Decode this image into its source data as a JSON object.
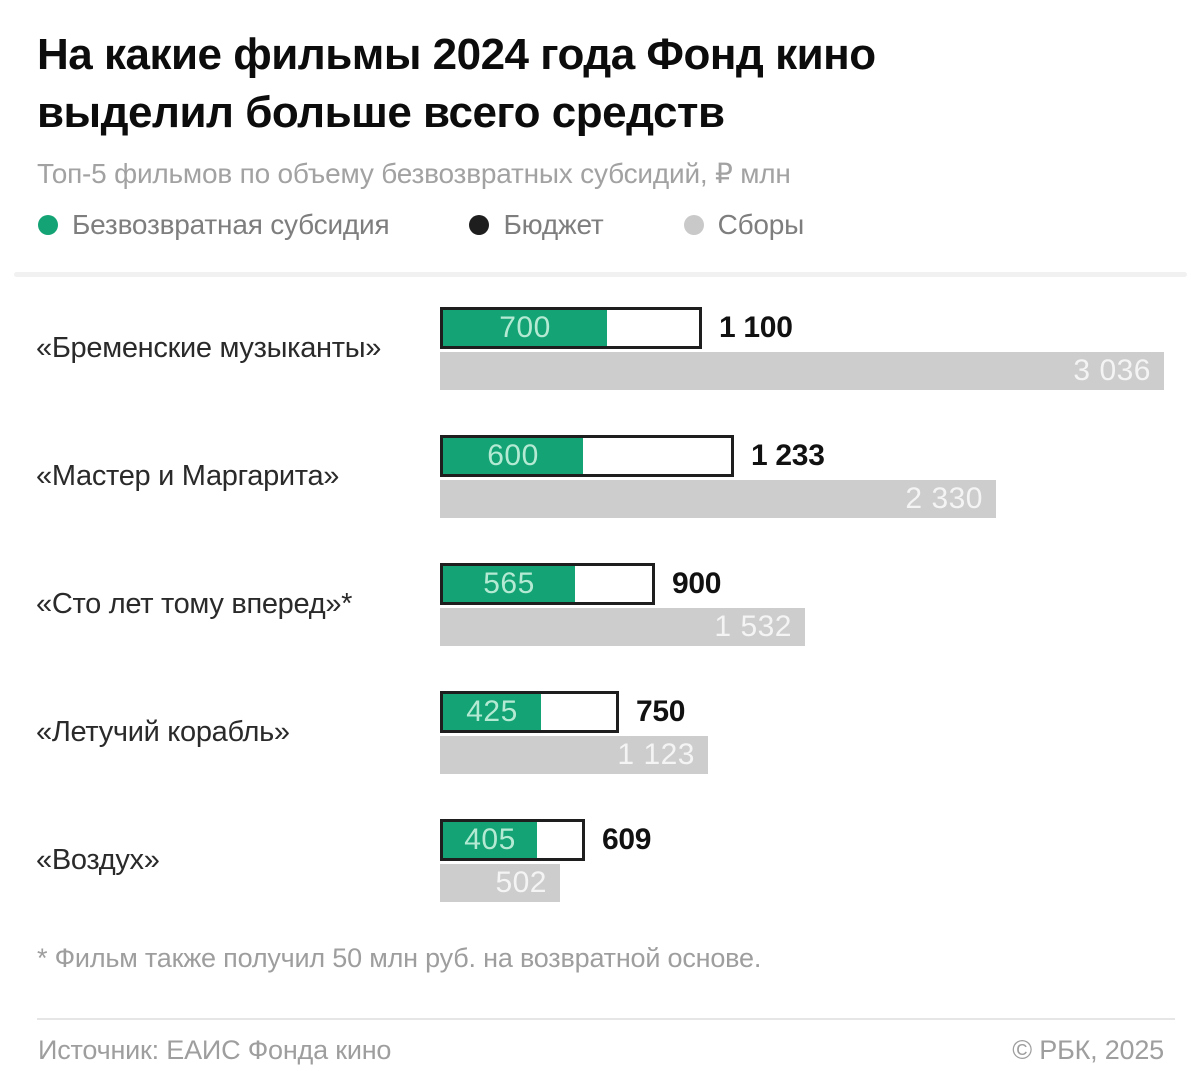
{
  "header": {
    "title_line1": "На какие фильмы 2024 года Фонд кино",
    "title_line2": "выделил больше всего средств",
    "subtitle": "Топ-5 фильмов по объему безвозвратных субсидий, ₽ млн"
  },
  "legend": [
    {
      "label": "Безвозвратная субсидия",
      "color": "#14a374"
    },
    {
      "label": "Бюджет",
      "color": "#1e1e1e"
    },
    {
      "label": "Сборы",
      "color": "#c9c9c9"
    }
  ],
  "chart_data": {
    "type": "bar",
    "orientation": "horizontal",
    "unit": "₽ млн",
    "title": "На какие фильмы 2024 года Фонд кино выделил больше всего средств",
    "subtitle": "Топ-5 фильмов по объему безвозвратных субсидий, ₽ млн",
    "categories": [
      "«Бременские музыканты»",
      "«Мастер и Маргарита»",
      "«Сто лет тому вперед»*",
      "«Летучий корабль»",
      "«Воздух»"
    ],
    "series": [
      {
        "name": "Безвозвратная субсидия",
        "values": [
          700,
          600,
          565,
          425,
          405
        ]
      },
      {
        "name": "Бюджет",
        "values": [
          1100,
          1233,
          900,
          750,
          609
        ]
      },
      {
        "name": "Сборы",
        "values": [
          3036,
          2330,
          1532,
          1123,
          502
        ]
      }
    ],
    "colors": {
      "subsidy": "#14a374",
      "budget_fill": "#ffffff",
      "budget_border": "#1e1e1e",
      "fees": "#cdcdcd"
    },
    "legend_position": "top",
    "grid": false,
    "value_labels": true
  },
  "footnote": "* Фильм также получил 50 млн руб. на возвратной основе.",
  "footer": {
    "source": "Источник: ЕАИС Фонда кино",
    "copyright": "© РБК, 2025"
  }
}
